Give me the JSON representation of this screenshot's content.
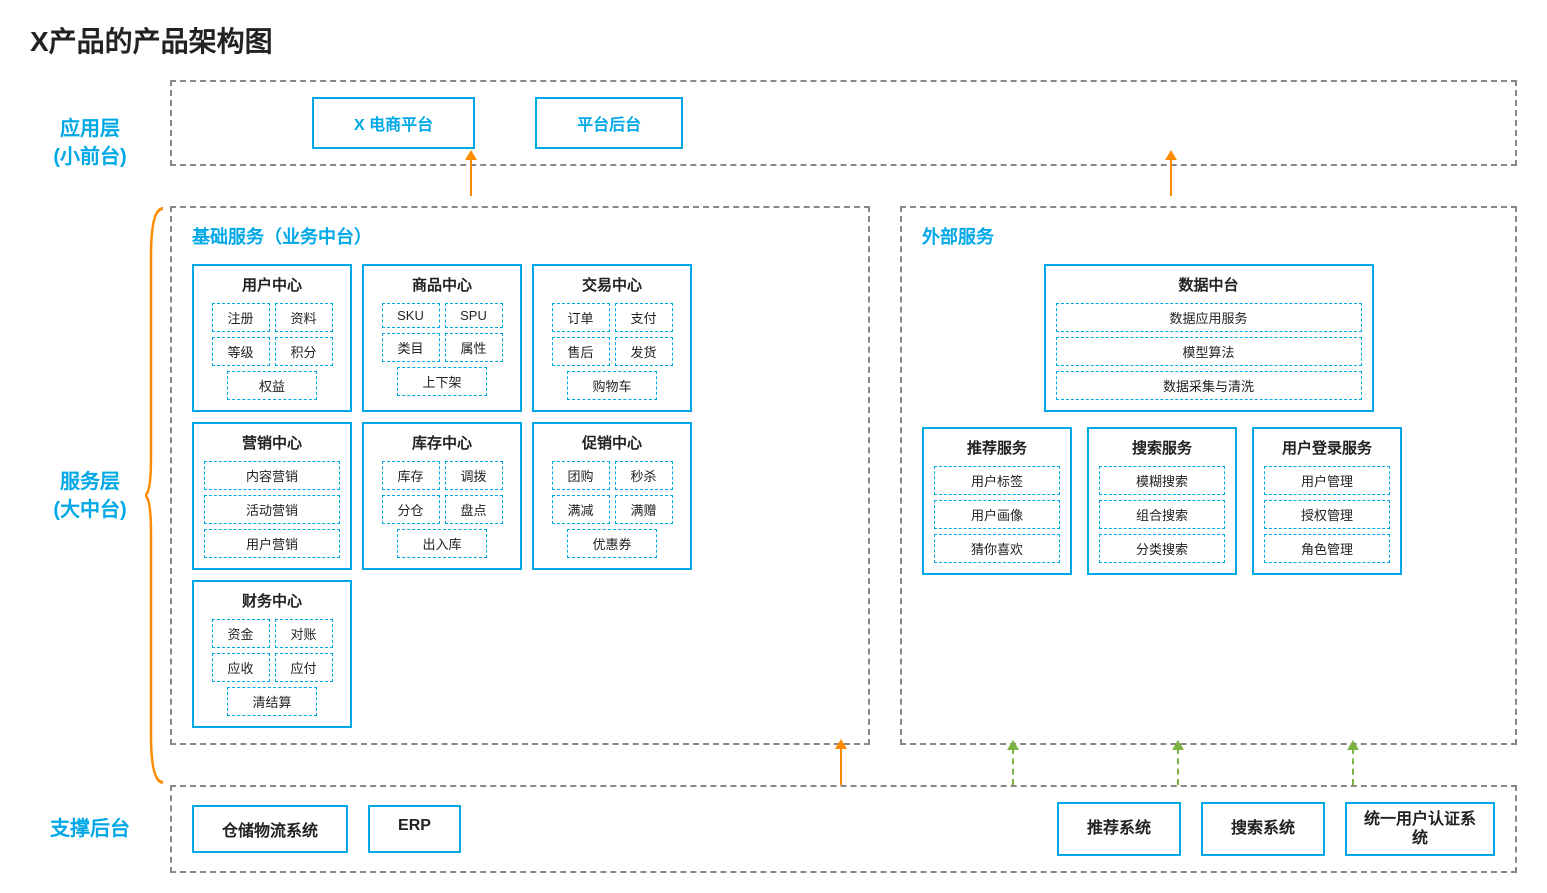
{
  "title": "X产品的产品架构图",
  "colors": {
    "primary": "#00a8e8",
    "accent_arrow": "#ff8c00",
    "dash_arrow": "#7cb342",
    "border_dash": "#888888",
    "text": "#222222"
  },
  "layers": {
    "app": {
      "label_line1": "应用层",
      "label_line2": "(小前台)",
      "items": [
        "X 电商平台",
        "平台后台"
      ]
    },
    "service": {
      "label_line1": "服务层",
      "label_line2": "(大中台)",
      "basic_title": "基础服务（业务中台）",
      "external_title": "外部服务",
      "basic_modules": [
        {
          "title": "用户中心",
          "items": [
            "注册",
            "资料",
            "等级",
            "积分",
            "权益"
          ]
        },
        {
          "title": "商品中心",
          "items": [
            "SKU",
            "SPU",
            "类目",
            "属性",
            "上下架"
          ]
        },
        {
          "title": "交易中心",
          "items": [
            "订单",
            "支付",
            "售后",
            "发货",
            "购物车"
          ]
        },
        {
          "title": "营销中心",
          "items_stack": [
            "内容营销",
            "活动营销",
            "用户营销"
          ]
        },
        {
          "title": "库存中心",
          "items": [
            "库存",
            "调拨",
            "分仓",
            "盘点",
            "出入库"
          ]
        },
        {
          "title": "促销中心",
          "items": [
            "团购",
            "秒杀",
            "满减",
            "满赠",
            "优惠券"
          ]
        },
        {
          "title": "财务中心",
          "items": [
            "资金",
            "对账",
            "应收",
            "应付",
            "清结算"
          ]
        }
      ],
      "data_platform": {
        "title": "数据中台",
        "items": [
          "数据应用服务",
          "模型算法",
          "数据采集与清洗"
        ]
      },
      "external_modules": [
        {
          "title": "推荐服务",
          "items": [
            "用户标签",
            "用户画像",
            "猜你喜欢"
          ]
        },
        {
          "title": "搜索服务",
          "items": [
            "模糊搜索",
            "组合搜索",
            "分类搜索"
          ]
        },
        {
          "title": "用户登录服务",
          "items": [
            "用户管理",
            "授权管理",
            "角色管理"
          ]
        }
      ]
    },
    "support": {
      "label": "支撑后台",
      "left_items": [
        "仓储物流系统",
        "ERP"
      ],
      "right_items": [
        "推荐系统",
        "搜索系统",
        "统一用户认证系统"
      ]
    }
  }
}
